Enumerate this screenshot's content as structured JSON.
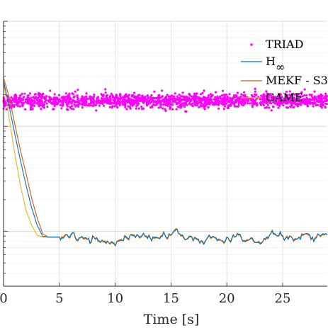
{
  "chart_data": {
    "type": "line",
    "xlabel": "Time [s]",
    "ylabel": "",
    "xlim": [
      0,
      29
    ],
    "ylim_log": [
      0.03,
      10
    ],
    "yscale": "log",
    "x_ticks": [
      0,
      5,
      10,
      15,
      20,
      25
    ],
    "x_tick_labels": [
      "0",
      "5",
      "10",
      "15",
      "20",
      "25"
    ],
    "grid": true,
    "legend_position": "top-right",
    "series": [
      {
        "name": "TRIAD",
        "style": "dots",
        "color": "#ff00ff",
        "level": 1.75,
        "spread": 0.35,
        "count": 1600
      },
      {
        "name": "H∞",
        "style": "line",
        "color": "#0072bd",
        "x": [
          0,
          0.5,
          1.0,
          1.5,
          2.0,
          2.5,
          3.0,
          3.5,
          4.0,
          4.5,
          5.0
        ],
        "y": [
          2.7,
          1.55,
          0.85,
          0.48,
          0.28,
          0.17,
          0.115,
          0.09,
          0.088,
          0.088,
          0.088
        ]
      },
      {
        "name": "MEKF - S3",
        "style": "line",
        "color": "#d95319",
        "x": [
          0,
          0.5,
          1.0,
          1.5,
          2.0,
          2.5,
          3.0,
          3.5,
          4.0,
          4.5,
          5.0
        ],
        "y": [
          2.9,
          1.9,
          1.05,
          0.6,
          0.36,
          0.21,
          0.135,
          0.095,
          0.088,
          0.088,
          0.088
        ]
      },
      {
        "name": "GAME",
        "style": "line",
        "color": "#edb120",
        "x": [
          0,
          0.5,
          1.0,
          1.5,
          2.0,
          2.5,
          3.0,
          3.5,
          4.0,
          4.5,
          5.0
        ],
        "y": [
          2.6,
          1.2,
          0.55,
          0.28,
          0.16,
          0.115,
          0.092,
          0.088,
          0.088,
          0.088,
          0.088
        ]
      }
    ],
    "steady_state": {
      "level": 0.088,
      "noise": 0.012
    }
  }
}
